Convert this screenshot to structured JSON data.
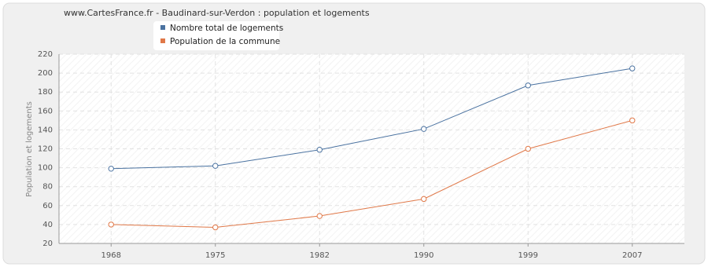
{
  "chart_data": {
    "type": "line",
    "title": "www.CartesFrance.fr - Baudinard-sur-Verdon : population et logements",
    "y_label": "Population et logements",
    "categories": [
      "1968",
      "1975",
      "1982",
      "1990",
      "1999",
      "2007"
    ],
    "series": [
      {
        "name": "Nombre total de logements",
        "color": "#4a72a0",
        "values": [
          99,
          102,
          119,
          141,
          187,
          205
        ]
      },
      {
        "name": "Population de la commune",
        "color": "#e07848",
        "values": [
          40,
          37,
          49,
          67,
          120,
          150
        ]
      }
    ],
    "ylim": [
      20,
      220
    ],
    "yticks": [
      20,
      40,
      60,
      80,
      100,
      120,
      140,
      160,
      180,
      200,
      220
    ],
    "grid": true
  }
}
